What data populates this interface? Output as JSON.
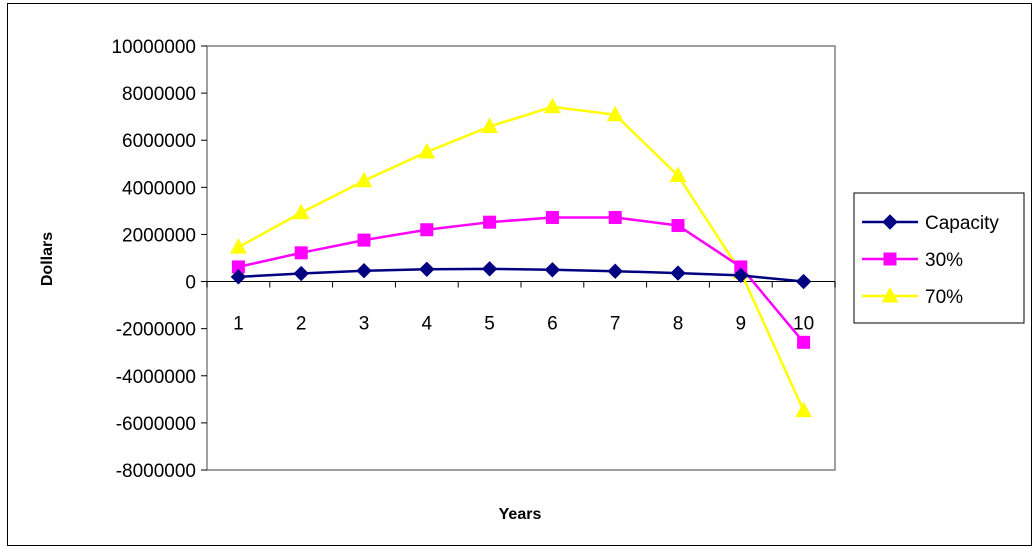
{
  "chart_data": {
    "type": "line",
    "title": "",
    "xlabel": "Years",
    "ylabel": "Dollars",
    "categories": [
      "1",
      "2",
      "3",
      "4",
      "5",
      "6",
      "7",
      "8",
      "9",
      "10"
    ],
    "ylim": [
      -8000000,
      10000000
    ],
    "yticks": [
      10000000,
      8000000,
      6000000,
      4000000,
      2000000,
      0,
      -2000000,
      -4000000,
      -6000000,
      -8000000
    ],
    "grid": false,
    "legend": "right",
    "series": [
      {
        "name": "Capacity",
        "color": "#000080",
        "marker": "diamond",
        "values": [
          200000,
          340000,
          460000,
          520000,
          540000,
          500000,
          440000,
          360000,
          260000,
          0
        ]
      },
      {
        "name": "30%",
        "color": "#ff00ff",
        "marker": "square",
        "values": [
          620000,
          1220000,
          1760000,
          2200000,
          2520000,
          2720000,
          2720000,
          2380000,
          620000,
          -2580000
        ]
      },
      {
        "name": "70%",
        "color": "#ffff00",
        "marker": "triangle",
        "values": [
          1460000,
          2920000,
          4280000,
          5500000,
          6580000,
          7420000,
          7080000,
          4500000,
          400000,
          -5480000
        ]
      }
    ]
  }
}
